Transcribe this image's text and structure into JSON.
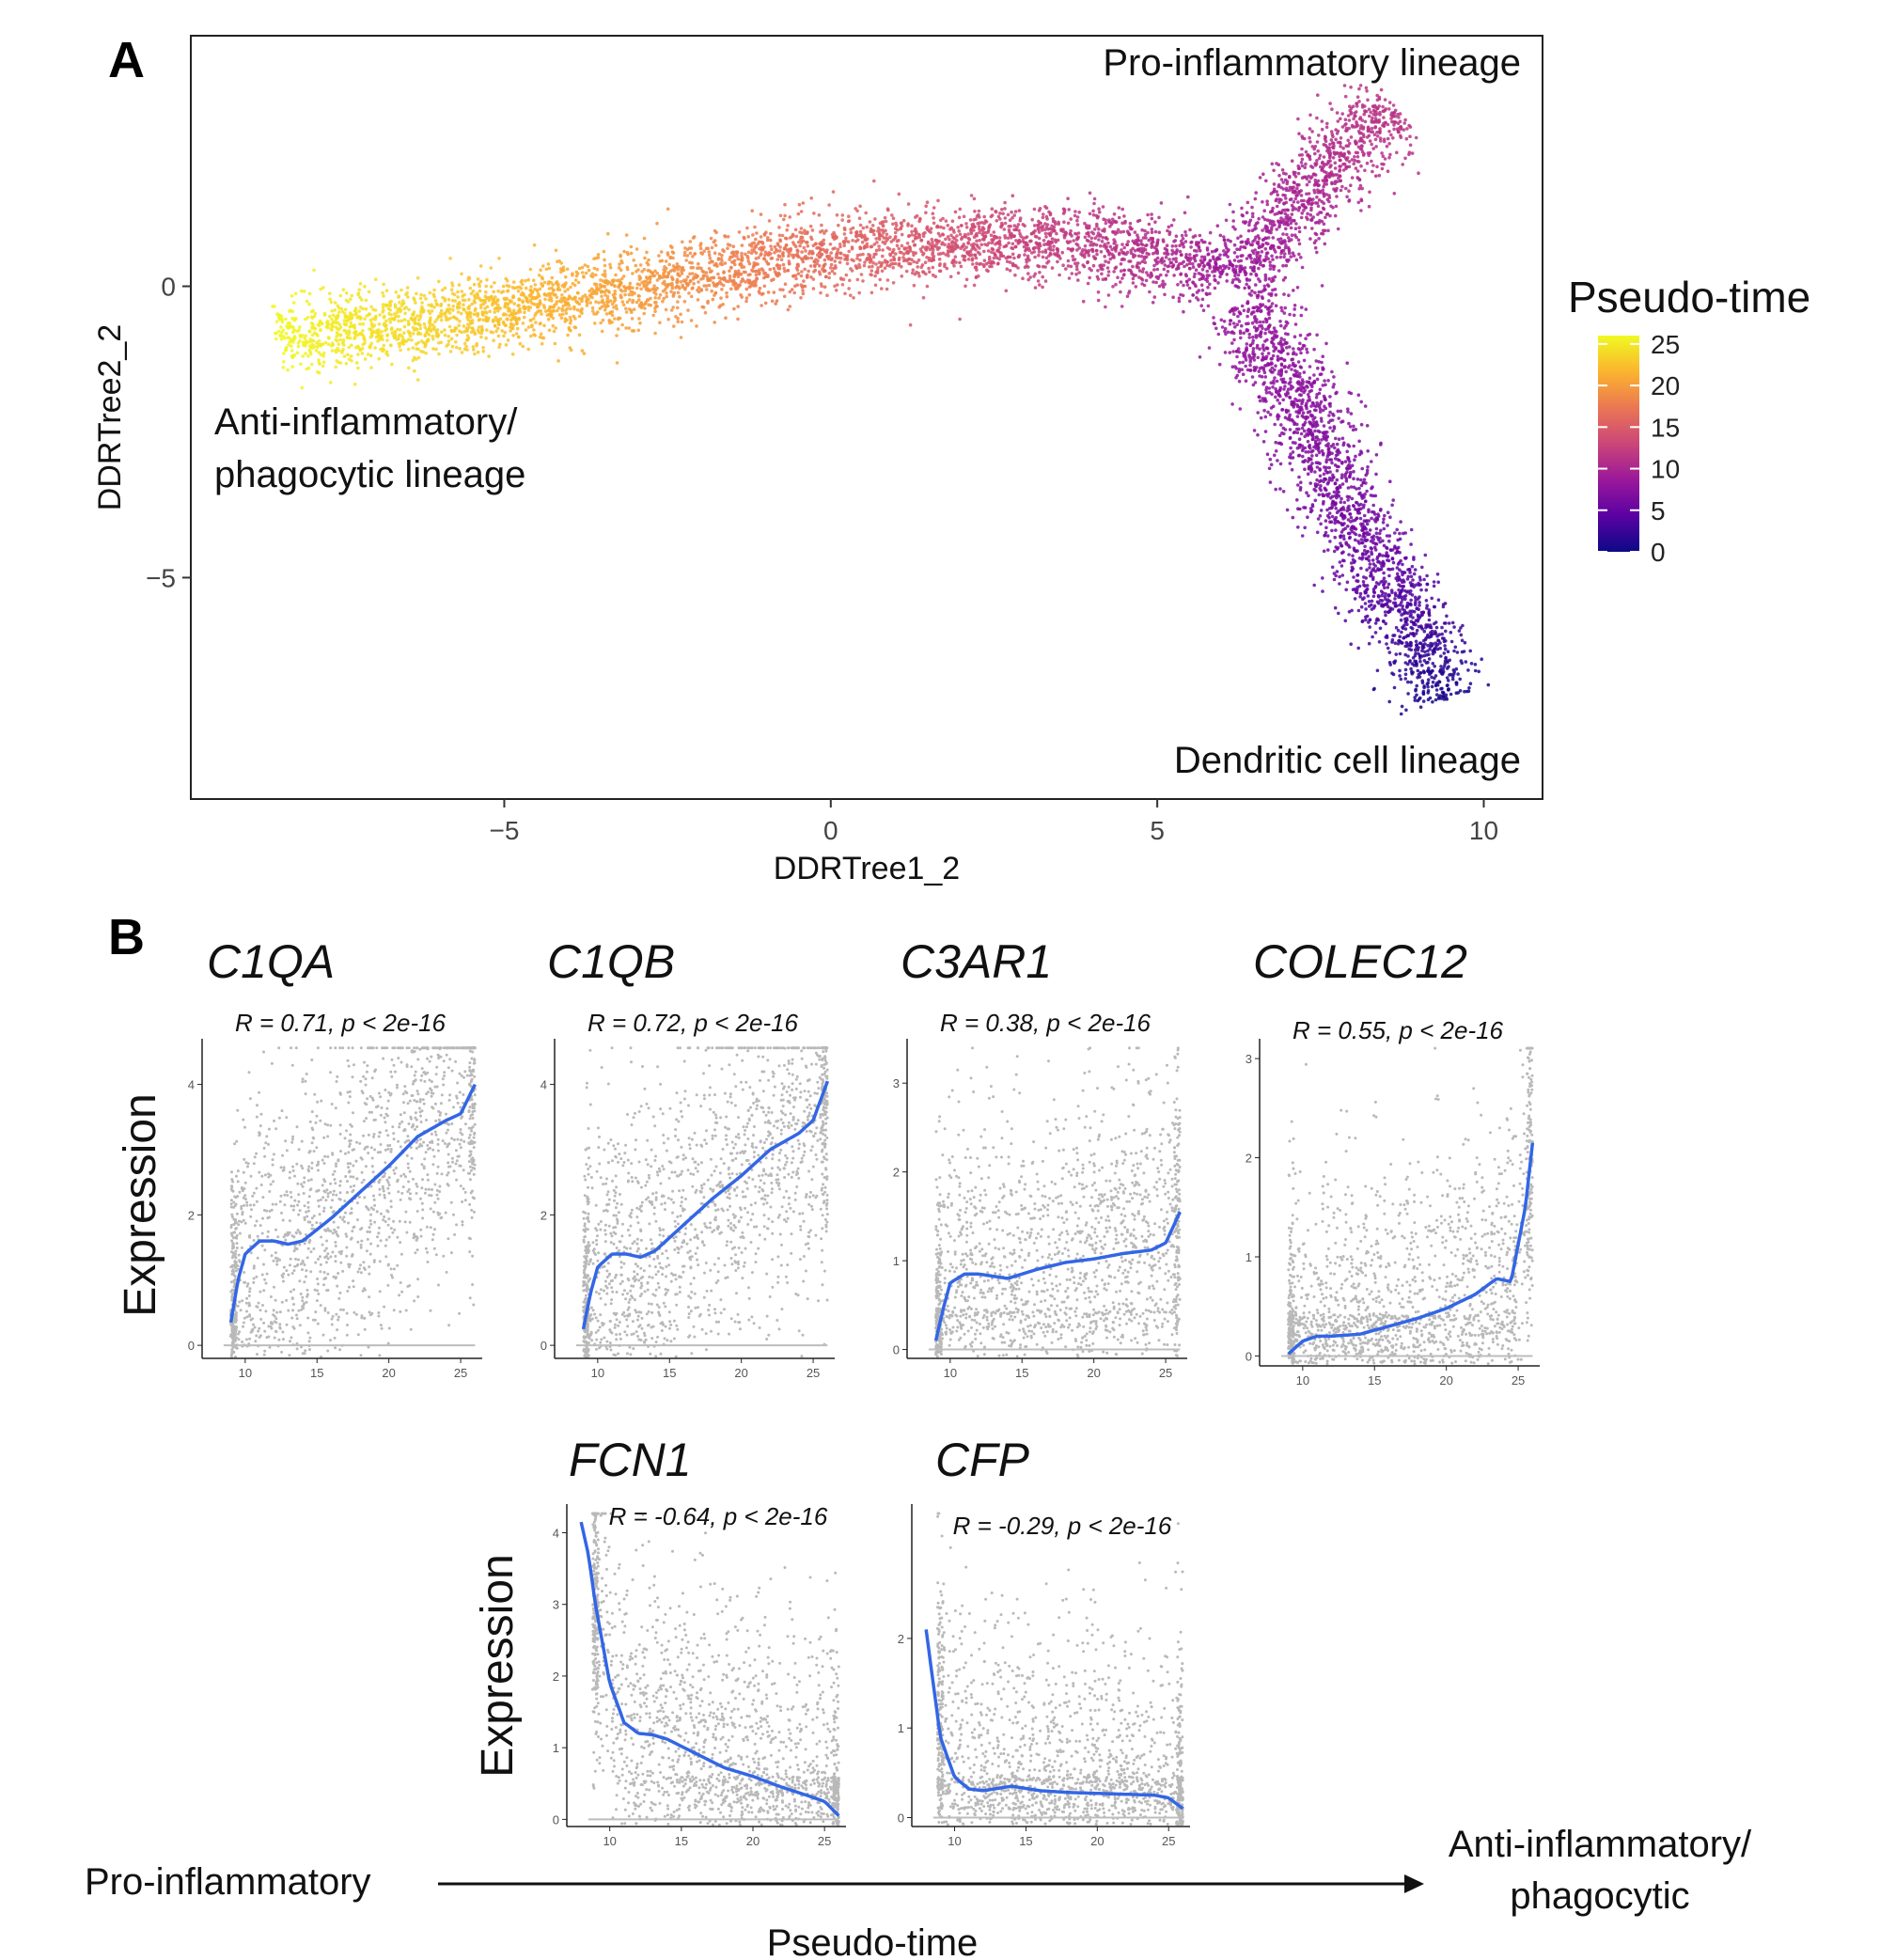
{
  "panels": {
    "a_label": "A",
    "b_label": "B"
  },
  "chart_data": [
    {
      "type": "scatter",
      "panel": "A",
      "xlabel": "DDRTree1_2",
      "ylabel": "DDRTree2_2",
      "xlim": [
        -9.8,
        10.9
      ],
      "ylim": [
        -8.8,
        4.3
      ],
      "xticks": [
        -5,
        0,
        5,
        10
      ],
      "yticks": [
        0,
        -5
      ],
      "xtick_labels": [
        "−5",
        "0",
        "5",
        "10"
      ],
      "ytick_labels": [
        "0",
        "−5"
      ],
      "color_variable": "Pseudo-time",
      "colorbar": {
        "title": "Pseudo-time",
        "range": [
          0,
          26
        ],
        "ticks": [
          25,
          20,
          15,
          10,
          5,
          0
        ],
        "tick_labels": [
          "25",
          "20",
          "15",
          "10",
          "5",
          "0"
        ],
        "colors": [
          "#0d0887",
          "#5b02a3",
          "#9a179b",
          "#cb4678",
          "#eb7852",
          "#fbb32f",
          "#f0f921"
        ]
      },
      "branches": [
        {
          "name": "Anti-inflammatory/phagocytic lineage",
          "path": [
            [
              -8.5,
              -0.9
            ],
            [
              -6,
              -0.6
            ],
            [
              -3,
              0.0
            ],
            [
              0,
              0.6
            ],
            [
              3,
              0.8
            ],
            [
              5,
              0.6
            ],
            [
              6,
              0.2
            ]
          ],
          "pseudotime": [
            26,
            23.5,
            20,
            16,
            12.5,
            10.5,
            9
          ]
        },
        {
          "name": "Pro-inflammatory lineage",
          "path": [
            [
              6.2,
              0.0
            ],
            [
              7.0,
              1.2
            ],
            [
              8.0,
              2.5
            ],
            [
              8.7,
              3.0
            ]
          ],
          "pseudotime": [
            8.5,
            9.5,
            11,
            11.5
          ]
        },
        {
          "name": "Dendritic cell lineage",
          "path": [
            [
              6.3,
              -0.3
            ],
            [
              7.2,
              -2.0
            ],
            [
              8.2,
              -4.5
            ],
            [
              8.9,
              -5.8
            ],
            [
              9.4,
              -7.1
            ]
          ],
          "pseudotime": [
            8.5,
            7.5,
            5.5,
            3,
            0.5
          ]
        }
      ],
      "annotations": [
        {
          "text": "Pro-inflammatory lineage",
          "position": "top-right"
        },
        {
          "text": "Anti-inflammatory/",
          "position": "left"
        },
        {
          "text": "phagocytic lineage",
          "position": "left"
        },
        {
          "text": "Dendritic cell lineage",
          "position": "bottom-right"
        }
      ]
    },
    {
      "type": "scatter",
      "panel": "B",
      "gene": "C1QA",
      "stat": "R = 0.71, p < 2e-16",
      "xlabel": "Pseudo-time",
      "ylabel": "Expression",
      "xlim": [
        7,
        26.5
      ],
      "ylim": [
        -0.2,
        4.7
      ],
      "xticks": [
        10,
        15,
        20,
        25
      ],
      "xtick_labels": [
        "10",
        "15",
        "20",
        "25"
      ],
      "yticks": [
        0,
        2,
        4
      ],
      "ytick_labels": [
        "0",
        "2",
        "4"
      ],
      "trend_x": [
        9,
        9.5,
        10,
        11,
        12,
        13,
        14,
        16,
        18,
        20,
        22,
        24,
        25,
        26
      ],
      "trend_y": [
        0.35,
        1.0,
        1.4,
        1.6,
        1.6,
        1.55,
        1.6,
        1.95,
        2.35,
        2.75,
        3.2,
        3.45,
        3.55,
        4.0
      ]
    },
    {
      "type": "scatter",
      "panel": "B",
      "gene": "C1QB",
      "stat": "R = 0.72, p < 2e-16",
      "xlabel": "Pseudo-time",
      "ylabel": "Expression",
      "xlim": [
        7,
        26.5
      ],
      "ylim": [
        -0.2,
        4.7
      ],
      "xticks": [
        10,
        15,
        20,
        25
      ],
      "xtick_labels": [
        "10",
        "15",
        "20",
        "25"
      ],
      "yticks": [
        0,
        2,
        4
      ],
      "ytick_labels": [
        "0",
        "2",
        "4"
      ],
      "trend_x": [
        9,
        9.5,
        10,
        11,
        12,
        13,
        14,
        16,
        18,
        20,
        22,
        24,
        25,
        26
      ],
      "trend_y": [
        0.25,
        0.8,
        1.2,
        1.4,
        1.4,
        1.35,
        1.45,
        1.85,
        2.25,
        2.6,
        3.0,
        3.25,
        3.45,
        4.05
      ]
    },
    {
      "type": "scatter",
      "panel": "B",
      "gene": "C3AR1",
      "stat": "R = 0.38, p < 2e-16",
      "xlabel": "Pseudo-time",
      "ylabel": "Expression",
      "xlim": [
        7,
        26.5
      ],
      "ylim": [
        -0.1,
        3.5
      ],
      "xticks": [
        10,
        15,
        20,
        25
      ],
      "xtick_labels": [
        "10",
        "15",
        "20",
        "25"
      ],
      "yticks": [
        0,
        1,
        2,
        3
      ],
      "ytick_labels": [
        "0",
        "1",
        "2",
        "3"
      ],
      "trend_x": [
        9,
        9.5,
        10,
        11,
        12,
        14,
        16,
        18,
        20,
        22,
        24,
        25,
        26
      ],
      "trend_y": [
        0.1,
        0.45,
        0.75,
        0.85,
        0.85,
        0.8,
        0.9,
        0.98,
        1.02,
        1.08,
        1.12,
        1.2,
        1.55
      ]
    },
    {
      "type": "scatter",
      "panel": "B",
      "gene": "COLEC12",
      "stat": "R = 0.55, p < 2e-16",
      "xlabel": "Pseudo-time",
      "ylabel": "Expression",
      "xlim": [
        7,
        26.5
      ],
      "ylim": [
        -0.1,
        3.2
      ],
      "xticks": [
        10,
        15,
        20,
        25
      ],
      "xtick_labels": [
        "10",
        "15",
        "20",
        "25"
      ],
      "yticks": [
        0,
        1,
        2,
        3
      ],
      "ytick_labels": [
        "0",
        "1",
        "2",
        "3"
      ],
      "trend_x": [
        9,
        10,
        11,
        12,
        14,
        16,
        18,
        20,
        22,
        23.5,
        24.5,
        25.5,
        26
      ],
      "trend_y": [
        0.02,
        0.15,
        0.2,
        0.2,
        0.22,
        0.3,
        0.38,
        0.48,
        0.62,
        0.78,
        0.75,
        1.5,
        2.15
      ]
    },
    {
      "type": "scatter",
      "panel": "B",
      "gene": "FCN1",
      "stat": "R = -0.64, p < 2e-16",
      "xlabel": "Pseudo-time",
      "ylabel": "Expression",
      "xlim": [
        7,
        26.5
      ],
      "ylim": [
        -0.1,
        4.4
      ],
      "xticks": [
        10,
        15,
        20,
        25
      ],
      "xtick_labels": [
        "10",
        "15",
        "20",
        "25"
      ],
      "yticks": [
        0,
        1,
        2,
        3,
        4
      ],
      "ytick_labels": [
        "0",
        "1",
        "2",
        "3",
        "4"
      ],
      "trend_x": [
        8,
        8.5,
        9,
        10,
        11,
        12,
        13,
        14,
        16,
        18,
        20,
        22,
        24,
        25,
        26
      ],
      "trend_y": [
        4.15,
        3.7,
        3.0,
        1.9,
        1.35,
        1.2,
        1.18,
        1.12,
        0.92,
        0.72,
        0.6,
        0.45,
        0.32,
        0.25,
        0.05
      ]
    },
    {
      "type": "scatter",
      "panel": "B",
      "gene": "CFP",
      "stat": "R = -0.29, p < 2e-16",
      "xlabel": "Pseudo-time",
      "ylabel": "Expression",
      "xlim": [
        7,
        26.5
      ],
      "ylim": [
        -0.1,
        3.5
      ],
      "xticks": [
        10,
        15,
        20,
        25
      ],
      "xtick_labels": [
        "10",
        "15",
        "20",
        "25"
      ],
      "yticks": [
        0,
        1,
        2
      ],
      "ytick_labels": [
        "0",
        "1",
        "2"
      ],
      "trend_x": [
        8,
        8.5,
        9,
        10,
        11,
        12,
        14,
        16,
        18,
        20,
        22,
        24,
        25,
        26
      ],
      "trend_y": [
        2.1,
        1.5,
        0.9,
        0.45,
        0.32,
        0.3,
        0.35,
        0.3,
        0.28,
        0.27,
        0.26,
        0.25,
        0.22,
        0.1
      ]
    }
  ],
  "bottom": {
    "left_label": "Pro-inflammatory",
    "right_label_line1": "Anti-inflammatory/",
    "right_label_line2": "phagocytic",
    "axis_label": "Pseudo-time"
  },
  "expression_label": "Expression"
}
